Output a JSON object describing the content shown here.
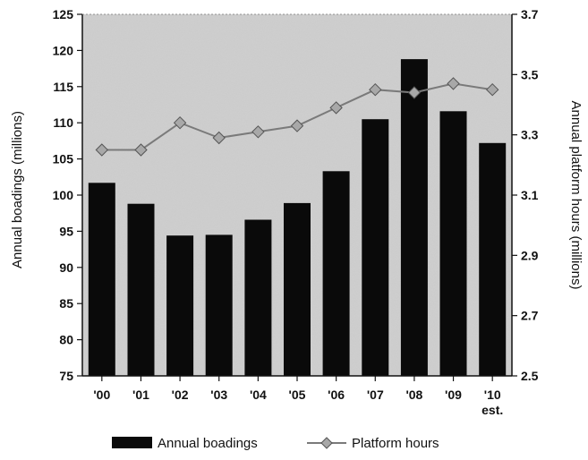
{
  "chart_data": {
    "type": "bar",
    "title": "",
    "categories": [
      "'00",
      "'01",
      "'02",
      "'03",
      "'04",
      "'05",
      "'06",
      "'07",
      "'08",
      "'09",
      "'10"
    ],
    "category_sublabels": [
      "",
      "",
      "",
      "",
      "",
      "",
      "",
      "",
      "",
      "",
      "est."
    ],
    "series": [
      {
        "name": "Annual boadings",
        "type": "bar",
        "axis": "left",
        "color": "#0a0a0a",
        "values": [
          101.7,
          98.8,
          94.4,
          94.5,
          96.6,
          98.9,
          103.3,
          110.5,
          118.8,
          111.6,
          107.2
        ]
      },
      {
        "name": "Platform hours",
        "type": "line",
        "axis": "right",
        "color": "#7a7a7a",
        "marker": "diamond",
        "values": [
          3.25,
          3.25,
          3.34,
          3.29,
          3.31,
          3.33,
          3.39,
          3.45,
          3.44,
          3.47,
          3.45
        ]
      }
    ],
    "ylabel": "Annual boadings (millions)",
    "ylim": [
      75,
      125
    ],
    "yticks": [
      75,
      80,
      85,
      90,
      95,
      100,
      105,
      110,
      115,
      120,
      125
    ],
    "y2label": "Annual platform hours (millions)",
    "y2lim": [
      2.5,
      3.7
    ],
    "y2ticks": [
      "2.5",
      "2.7",
      "2.9",
      "3.1",
      "3.3",
      "3.5",
      "3.7"
    ],
    "legend_position": "bottom-center",
    "grid": false
  }
}
